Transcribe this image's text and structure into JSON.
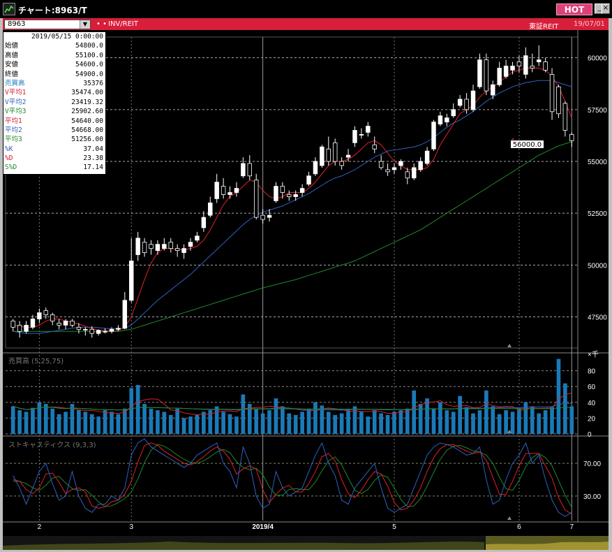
{
  "window": {
    "title": "チャート:8963/T",
    "hot_label": "HOT",
    "btn_min": "_",
    "btn_max": "□",
    "btn_close": "×"
  },
  "toolbar": {
    "symbol": "8963",
    "dots": "• •",
    "category": "INV/REIT",
    "market": "東証REIT",
    "date": "19/07/01"
  },
  "info": {
    "date": "2019/05/15  0:00:00",
    "rows": [
      {
        "label": "始値",
        "value": "54800.0"
      },
      {
        "label": "高値",
        "value": "55100.0"
      },
      {
        "label": "安値",
        "value": "54600.0"
      },
      {
        "label": "終値",
        "value": "54900.0"
      },
      {
        "label": "売買高",
        "value": "35376"
      },
      {
        "label": "V平均1",
        "value": "35474.00"
      },
      {
        "label": "V平均2",
        "value": "23419.32"
      },
      {
        "label": "V平均3",
        "value": "25902.60"
      },
      {
        "label": "平均1",
        "value": "54640.00"
      },
      {
        "label": "平均2",
        "value": "54668.00"
      },
      {
        "label": "平均3",
        "value": "51256.00"
      },
      {
        "label": "%K",
        "value": "37.04"
      },
      {
        "label": "%D",
        "value": "23.38"
      },
      {
        "label": "S%D",
        "value": "17.14"
      }
    ]
  },
  "price_axis": [
    "60000",
    "57500",
    "55000",
    "52500",
    "50000",
    "47500"
  ],
  "current_price": "56000.0",
  "volume_panel": {
    "label": "売買高 (5,25,75)",
    "unit": "×千",
    "axis": [
      "80",
      "60",
      "40",
      "20",
      "0"
    ]
  },
  "stoch_panel": {
    "label": "ストキャスティクス (9,3,3)",
    "axis": [
      "70.00",
      "30.00"
    ]
  },
  "x_axis": [
    "2",
    "3",
    "2019/4",
    "5",
    "6",
    "7"
  ],
  "colors": {
    "up": "#ffffff",
    "down": "#000000",
    "ma_short": "#e0202a",
    "ma_mid": "#3060c0",
    "ma_long": "#1f8a2a",
    "volume": "#1a7ab8"
  },
  "chart_data": {
    "type": "candlestick",
    "ylim": [
      46000,
      61000
    ],
    "price": {
      "open": [
        47300,
        47100,
        46800,
        47000,
        47400,
        47800,
        47600,
        47200,
        47100,
        47300,
        47000,
        46900,
        46900,
        46700,
        46800,
        46800,
        46900,
        46950,
        48300,
        50500,
        51100,
        51000,
        50700,
        50800,
        51100,
        50800,
        50600,
        50900,
        51200,
        51800,
        52400,
        53200,
        53800,
        53400,
        53500,
        54300,
        54900,
        54100,
        52400,
        52300,
        53100,
        53800,
        53400,
        53300,
        53500,
        53900,
        54400,
        54800,
        55600,
        55900,
        55000,
        55200,
        55900,
        56300,
        56400,
        55800,
        55000,
        54600,
        54600,
        54800,
        54500,
        54200,
        54600,
        54900,
        55600,
        56800,
        56900,
        57200,
        57700,
        58000,
        57500,
        58600,
        59900,
        58200,
        58700,
        59100,
        59400,
        59800,
        59200,
        59600,
        59800,
        59800,
        59200,
        58600,
        57800,
        56300
      ],
      "close": [
        47000,
        46800,
        47100,
        47400,
        47700,
        47600,
        47300,
        47100,
        47300,
        47100,
        46900,
        46900,
        46700,
        46850,
        46800,
        46900,
        46950,
        48300,
        50200,
        51300,
        50600,
        50800,
        51000,
        51000,
        50800,
        50700,
        50800,
        51100,
        51400,
        52300,
        53000,
        54000,
        53400,
        53500,
        53700,
        54900,
        54300,
        52300,
        52200,
        52400,
        53800,
        53500,
        53300,
        53400,
        53700,
        54300,
        55000,
        55700,
        55000,
        55000,
        54800,
        55300,
        56500,
        56300,
        56700,
        55600,
        54700,
        54500,
        54700,
        55000,
        54200,
        54700,
        55000,
        55500,
        56900,
        57200,
        57100,
        57500,
        58000,
        57500,
        58400,
        59900,
        58400,
        58700,
        59500,
        59600,
        59600,
        59600,
        60100,
        59500,
        59900,
        59400,
        57400,
        57300,
        56500,
        56000
      ],
      "high": [
        47400,
        47300,
        47300,
        47600,
        47900,
        47950,
        47700,
        47400,
        47400,
        47400,
        47200,
        47000,
        47050,
        46900,
        46950,
        47000,
        47100,
        48700,
        51300,
        51600,
        51300,
        51200,
        51200,
        51300,
        51300,
        51000,
        51000,
        51300,
        51600,
        52600,
        53300,
        54400,
        54200,
        53800,
        54000,
        55200,
        55300,
        54400,
        52700,
        52700,
        54000,
        54000,
        53600,
        53600,
        53900,
        54500,
        55200,
        55800,
        56200,
        56100,
        55200,
        55600,
        56700,
        56600,
        56900,
        56200,
        55300,
        54900,
        54900,
        55100,
        54700,
        54900,
        55200,
        55700,
        57000,
        57400,
        57300,
        57800,
        58200,
        58300,
        58700,
        60200,
        60200,
        58900,
        59800,
        59900,
        59800,
        60100,
        60500,
        60200,
        60600,
        60000,
        59500,
        58700,
        57900,
        56400
      ],
      "low": [
        46800,
        46500,
        46700,
        46900,
        47200,
        47400,
        47100,
        46900,
        46900,
        47000,
        46700,
        46600,
        46500,
        46600,
        46700,
        46700,
        46800,
        46900,
        48200,
        50200,
        50400,
        50500,
        50500,
        50700,
        50600,
        50400,
        50300,
        50700,
        51100,
        51600,
        52300,
        53000,
        53200,
        53200,
        53300,
        54200,
        54100,
        52200,
        52000,
        52100,
        53000,
        53200,
        53100,
        53100,
        53300,
        53800,
        54300,
        54700,
        54800,
        54800,
        54600,
        55000,
        55700,
        56100,
        56200,
        55400,
        54600,
        54300,
        54400,
        54600,
        53900,
        54100,
        54500,
        54800,
        55500,
        56700,
        56700,
        57100,
        57600,
        57300,
        57400,
        58500,
        58200,
        58000,
        58600,
        59000,
        59200,
        59300,
        59000,
        59300,
        59600,
        59300,
        57000,
        57100,
        56200,
        55700
      ]
    },
    "volume": [
      35,
      30,
      28,
      33,
      40,
      38,
      32,
      25,
      28,
      38,
      30,
      28,
      25,
      22,
      30,
      28,
      25,
      32,
      58,
      62,
      38,
      32,
      30,
      28,
      24,
      32,
      20,
      22,
      24,
      28,
      30,
      35,
      28,
      25,
      22,
      50,
      38,
      32,
      26,
      30,
      45,
      35,
      26,
      24,
      28,
      32,
      40,
      36,
      28,
      24,
      26,
      30,
      35,
      28,
      22,
      30,
      26,
      24,
      28,
      30,
      32,
      55,
      38,
      45,
      32,
      40,
      30,
      28,
      48,
      34,
      26,
      30,
      55,
      35,
      25,
      30,
      28,
      32,
      40,
      35,
      26,
      30,
      34,
      95,
      64,
      35
    ],
    "ma_short": [
      47100,
      47050,
      47000,
      47000,
      47100,
      47300,
      47400,
      47400,
      47300,
      47250,
      47150,
      47050,
      46950,
      46850,
      46850,
      46800,
      46850,
      47000,
      47500,
      48400,
      49300,
      50100,
      50600,
      50800,
      50800,
      50750,
      50750,
      50800,
      50900,
      51200,
      51700,
      52300,
      52900,
      53300,
      53500,
      53800,
      54100,
      54000,
      53600,
      53300,
      53200,
      53300,
      53500,
      53500,
      53500,
      53700,
      54000,
      54400,
      54800,
      55000,
      55000,
      55100,
      55300,
      55600,
      55900,
      56000,
      55800,
      55400,
      55000,
      54800,
      54600,
      54600,
      54600,
      54700,
      55100,
      55800,
      56300,
      56800,
      57300,
      57500,
      57700,
      58100,
      58400,
      58600,
      58800,
      59100,
      59300,
      59400,
      59500,
      59500,
      59500,
      59400,
      59100,
      58600,
      57900,
      57100
    ],
    "ma_mid": [
      46800,
      46750,
      46700,
      46700,
      46700,
      46750,
      46800,
      46850,
      46900,
      46950,
      47000,
      47000,
      47000,
      46980,
      46950,
      46930,
      46920,
      46950,
      47100,
      47400,
      47700,
      48000,
      48300,
      48550,
      48800,
      49050,
      49300,
      49550,
      49850,
      50150,
      50450,
      50750,
      51050,
      51350,
      51650,
      51950,
      52200,
      52400,
      52550,
      52650,
      52750,
      52850,
      53000,
      53150,
      53300,
      53450,
      53650,
      53850,
      54050,
      54200,
      54300,
      54450,
      54600,
      54800,
      55000,
      55200,
      55350,
      55500,
      55550,
      55600,
      55650,
      55700,
      55800,
      55950,
      56150,
      56400,
      56650,
      56850,
      57000,
      57200,
      57400,
      57650,
      57900,
      58100,
      58300,
      58450,
      58600,
      58700,
      58800,
      58850,
      58900,
      58900,
      58900,
      58800,
      58700,
      58600
    ],
    "ma_long": [
      46800,
      46800,
      46800,
      46800,
      46800,
      46800,
      46800,
      46800,
      46800,
      46800,
      46800,
      46800,
      46800,
      46800,
      46800,
      46800,
      46800,
      46850,
      46900,
      47000,
      47100,
      47200,
      47300,
      47400,
      47500,
      47600,
      47700,
      47800,
      47900,
      48000,
      48100,
      48200,
      48300,
      48400,
      48500,
      48600,
      48700,
      48800,
      48900,
      48980,
      49060,
      49140,
      49220,
      49300,
      49400,
      49500,
      49600,
      49700,
      49800,
      49900,
      50000,
      50100,
      50200,
      50350,
      50500,
      50650,
      50800,
      50950,
      51100,
      51250,
      51400,
      51550,
      51700,
      51900,
      52100,
      52300,
      52500,
      52700,
      52900,
      53100,
      53300,
      53500,
      53700,
      53900,
      54100,
      54300,
      54500,
      54700,
      54900,
      55100,
      55300,
      55450,
      55600,
      55750,
      55850,
      55950
    ],
    "stoch_k": [
      55,
      40,
      20,
      40,
      60,
      70,
      45,
      25,
      30,
      60,
      30,
      15,
      10,
      20,
      20,
      30,
      25,
      40,
      80,
      95,
      100,
      90,
      85,
      80,
      75,
      70,
      65,
      70,
      80,
      85,
      90,
      95,
      70,
      60,
      40,
      90,
      70,
      30,
      15,
      20,
      60,
      40,
      30,
      35,
      40,
      60,
      80,
      95,
      70,
      55,
      25,
      20,
      40,
      50,
      60,
      70,
      40,
      15,
      10,
      15,
      20,
      40,
      60,
      80,
      90,
      95,
      93,
      90,
      85,
      80,
      82,
      90,
      50,
      20,
      25,
      50,
      70,
      80,
      95,
      70,
      80,
      50,
      25,
      10,
      5,
      10
    ],
    "stoch_d": [
      50,
      48,
      38,
      33,
      40,
      57,
      58,
      47,
      33,
      38,
      40,
      35,
      18,
      15,
      17,
      23,
      25,
      32,
      48,
      72,
      92,
      95,
      92,
      85,
      80,
      75,
      70,
      68,
      72,
      78,
      85,
      90,
      85,
      75,
      57,
      63,
      67,
      63,
      38,
      22,
      32,
      40,
      43,
      35,
      35,
      45,
      60,
      78,
      82,
      73,
      50,
      33,
      28,
      37,
      50,
      60,
      57,
      42,
      22,
      13,
      15,
      25,
      40,
      60,
      77,
      88,
      93,
      93,
      89,
      85,
      82,
      84,
      74,
      53,
      32,
      32,
      48,
      67,
      82,
      82,
      82,
      67,
      52,
      28,
      13,
      8
    ],
    "stoch_sd": [
      48,
      48,
      45,
      40,
      37,
      43,
      52,
      54,
      46,
      39,
      37,
      38,
      31,
      23,
      17,
      18,
      22,
      27,
      35,
      51,
      71,
      86,
      93,
      91,
      86,
      80,
      75,
      71,
      70,
      73,
      78,
      84,
      87,
      83,
      72,
      65,
      62,
      64,
      56,
      41,
      31,
      31,
      38,
      39,
      38,
      38,
      47,
      61,
      73,
      78,
      68,
      52,
      37,
      33,
      38,
      49,
      56,
      53,
      40,
      26,
      17,
      18,
      27,
      42,
      59,
      75,
      86,
      91,
      92,
      89,
      85,
      84,
      80,
      70,
      53,
      39,
      37,
      49,
      66,
      77,
      82,
      77,
      67,
      49,
      31,
      16
    ]
  }
}
